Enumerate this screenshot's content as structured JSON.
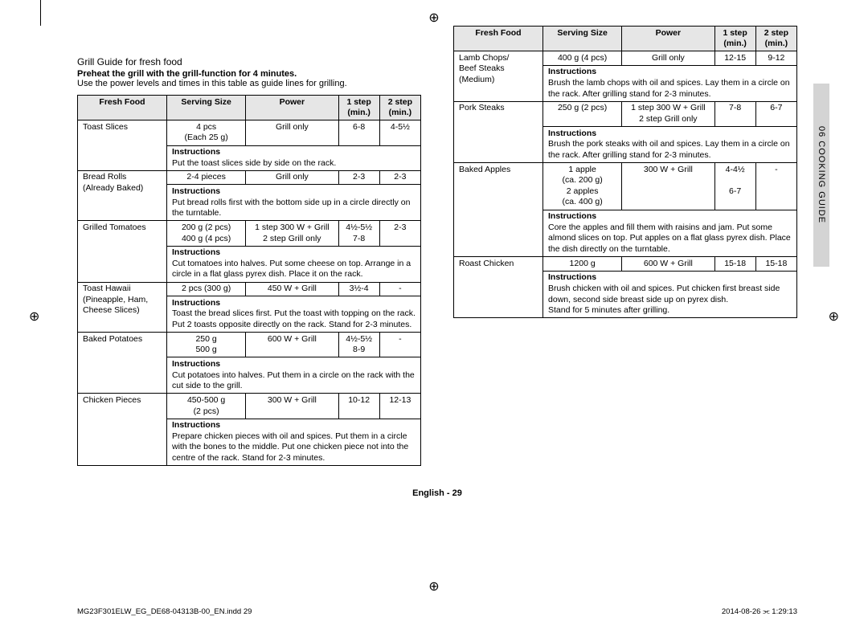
{
  "page": {
    "section_title": "Grill Guide for fresh food",
    "preheat": "Preheat the grill with the grill-function for 4 minutes.",
    "intro": "Use the power levels and times in this table as guide lines for grilling.",
    "footer_center": "English - 29",
    "footer_left": "MG23F301ELW_EG_DE68-04313B-00_EN.indd   29",
    "footer_right": "2014-08-26   ⫘ 1:29:13",
    "side_tab": "06 COOKING GUIDE"
  },
  "headers": {
    "c1": "Fresh Food",
    "c2": "Serving Size",
    "c3": "Power",
    "c4_a": "1 step",
    "c4_b": "(min.)",
    "c5_a": "2 step",
    "c5_b": "(min.)",
    "instr": "Instructions"
  },
  "t1": {
    "r1": {
      "food": "Toast Slices",
      "size_a": "4 pcs",
      "size_b": "(Each 25 g)",
      "power": "Grill only",
      "s1": "6-8",
      "s2": "4-5½",
      "instr": "Put the toast slices side by side on the rack."
    },
    "r2": {
      "food_a": "Bread Rolls",
      "food_b": "(Already Baked)",
      "size": "2-4 pieces",
      "power": "Grill only",
      "s1": "2-3",
      "s2": "2-3",
      "instr": "Put bread rolls first with the bottom side up in a circle directly on the turntable."
    },
    "r3": {
      "food": "Grilled Tomatoes",
      "size_a": "200 g (2 pcs)",
      "size_b": "400 g (4 pcs)",
      "power_a": "1 step 300 W + Grill",
      "power_b": "2 step Grill only",
      "s1_a": "4½-5½",
      "s1_b": "7-8",
      "s2": "2-3",
      "instr": "Cut tomatoes into halves. Put some cheese on top. Arrange in a circle in a flat glass pyrex dish. Place it on the rack."
    },
    "r4": {
      "food_a": "Toast Hawaii",
      "food_b": "(Pineapple, Ham,",
      "food_c": "Cheese Slices)",
      "size": "2 pcs (300 g)",
      "power": "450 W + Grill",
      "s1": "3½-4",
      "s2": "-",
      "instr": "Toast the bread slices first. Put the toast with topping on the rack. Put 2 toasts opposite directly on the rack. Stand for 2-3 minutes."
    },
    "r5": {
      "food": "Baked Potatoes",
      "size_a": "250 g",
      "size_b": "500 g",
      "power": "600 W + Grill",
      "s1_a": "4½-5½",
      "s1_b": "8-9",
      "s2": "-",
      "instr": "Cut potatoes into halves. Put them in a circle on the rack with the cut side to the grill."
    },
    "r6": {
      "food": "Chicken Pieces",
      "size_a": "450-500 g",
      "size_b": "(2 pcs)",
      "power": "300 W + Grill",
      "s1": "10-12",
      "s2": "12-13",
      "instr": "Prepare chicken pieces with oil and spices. Put them in a circle with the bones to the middle. Put one chicken piece not into the centre of the rack. Stand for 2-3 minutes."
    }
  },
  "t2": {
    "r1": {
      "food_a": "Lamb Chops/",
      "food_b": "Beef Steaks",
      "food_c": "(Medium)",
      "size": "400 g (4 pcs)",
      "power": "Grill only",
      "s1": "12-15",
      "s2": "9-12",
      "instr": "Brush the lamb chops with oil and spices. Lay them in a circle on the rack. After grilling stand for 2-3 minutes."
    },
    "r2": {
      "food": "Pork Steaks",
      "size": "250 g (2 pcs)",
      "power_a": "1 step 300 W + Grill",
      "power_b": "2 step Grill only",
      "s1": "7-8",
      "s2": "6-7",
      "instr": "Brush the pork steaks with oil and spices. Lay them in a circle on the rack. After grilling stand for 2-3 minutes."
    },
    "r3": {
      "food": "Baked Apples",
      "size_a": "1 apple",
      "size_b": "(ca. 200 g)",
      "size_c": "2 apples",
      "size_d": "(ca. 400 g)",
      "power": "300 W + Grill",
      "s1_a": "4-4½",
      "s1_b": "6-7",
      "s2": "-",
      "instr": "Core the apples and fill them with raisins and jam. Put some almond slices on top. Put apples on a flat glass pyrex dish. Place the dish directly on the turntable."
    },
    "r4": {
      "food": "Roast Chicken",
      "size": "1200 g",
      "power": "600 W + Grill",
      "s1": "15-18",
      "s2": "15-18",
      "instr": "Brush chicken with oil and spices. Put chicken first breast side down, second side breast side up on pyrex dish.\nStand for 5 minutes after grilling."
    }
  }
}
